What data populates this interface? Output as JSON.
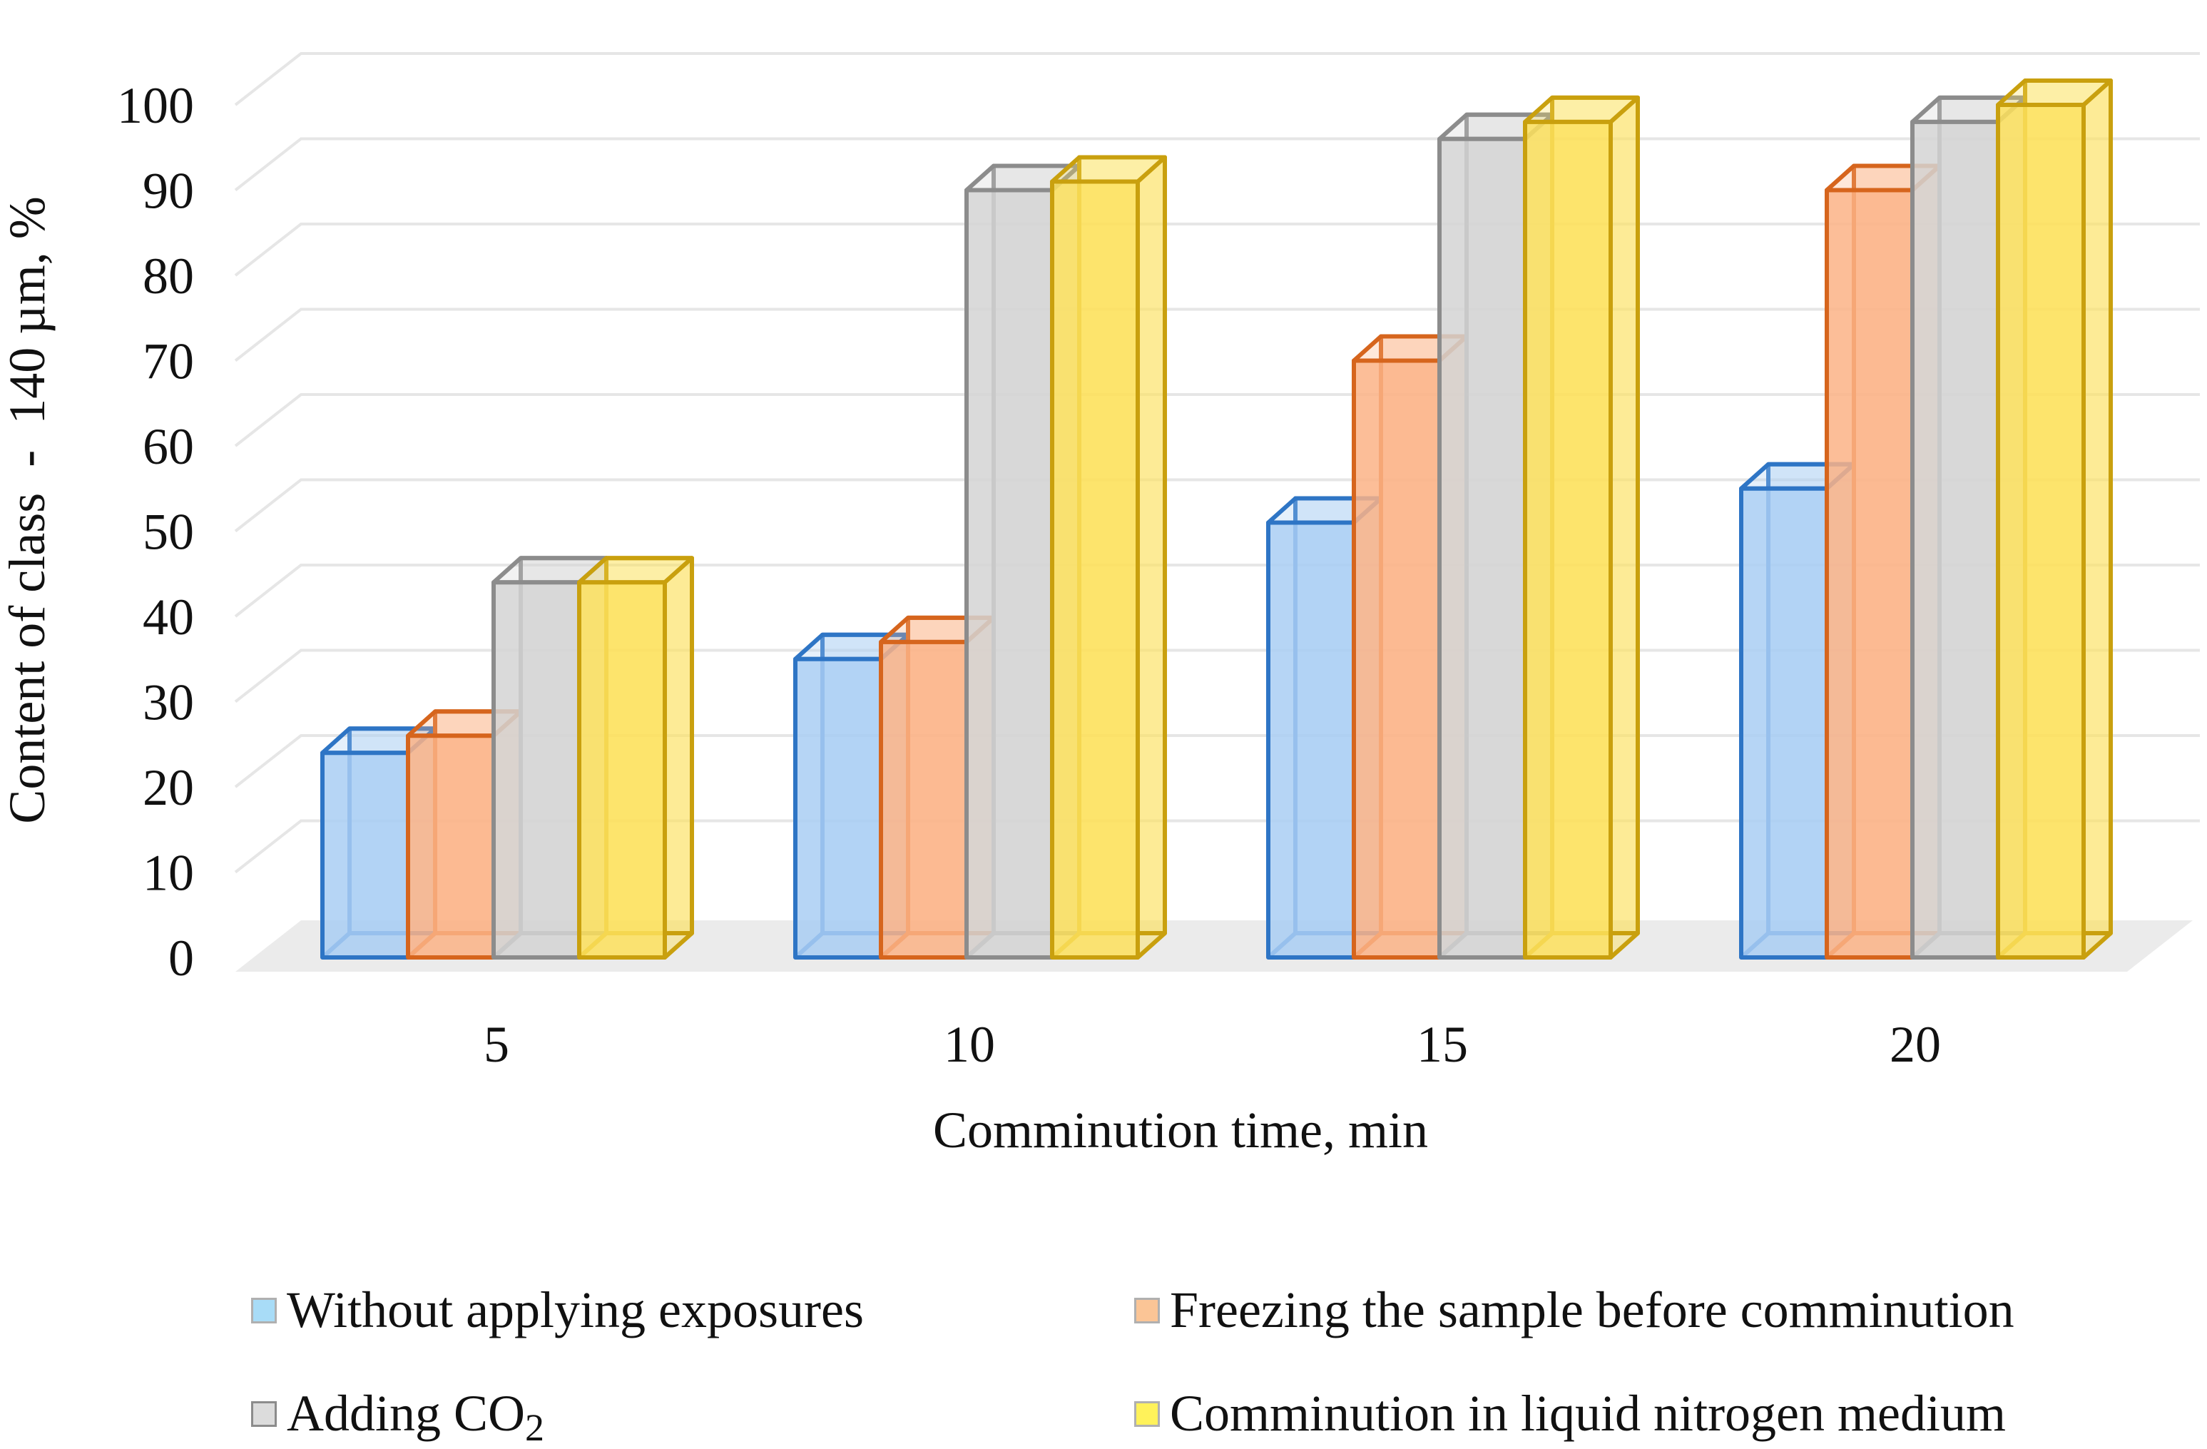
{
  "chart_data": {
    "type": "bar",
    "style": "3d-clustered-column",
    "title": "",
    "xlabel": "Comminution time, min",
    "ylabel": "Content of class  -  140 µm, %",
    "categories": [
      "5",
      "10",
      "15",
      "20"
    ],
    "ylim": [
      0,
      100
    ],
    "yticks": [
      "0",
      "10",
      "20",
      "30",
      "40",
      "50",
      "60",
      "70",
      "80",
      "90",
      "100"
    ],
    "grid": true,
    "legend_position": "bottom",
    "series": [
      {
        "name": "Without applying exposures",
        "values": [
          24,
          35,
          51,
          55
        ],
        "fill": "#a9cef3",
        "edge": "#2e75c5",
        "swatch": "#a8dcf7"
      },
      {
        "name": "Freezing the sample before comminution",
        "values": [
          26,
          37,
          70,
          90
        ],
        "fill": "#fbb386",
        "edge": "#d6651d",
        "swatch": "#fbc596"
      },
      {
        "name": "Adding CO",
        "subscript": "2",
        "values": [
          44,
          90,
          96,
          98
        ],
        "fill": "#d3d3d3",
        "edge": "#8c8c8c",
        "swatch": "#dcdcdc"
      },
      {
        "name": "Comminution in liquid nitrogen medium",
        "values": [
          44,
          91,
          98,
          100
        ],
        "fill": "#fde15c",
        "edge": "#c9a00e",
        "swatch": "#fff25a"
      }
    ]
  }
}
